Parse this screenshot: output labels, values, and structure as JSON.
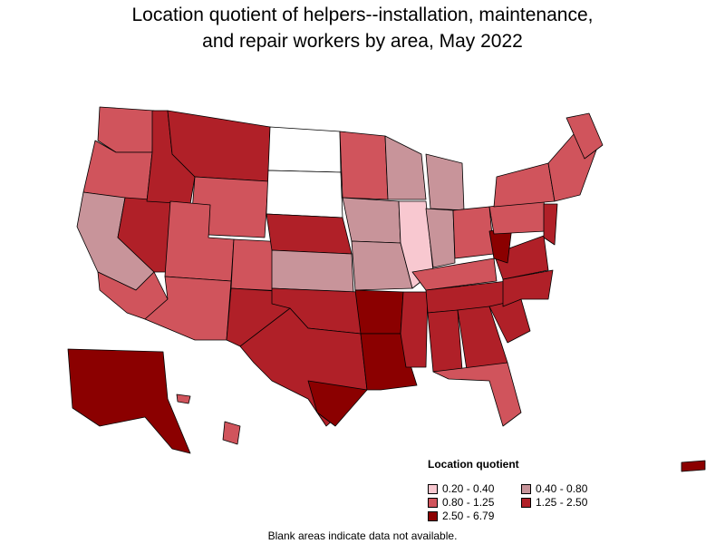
{
  "title_line1": "Location quotient of helpers--installation, maintenance,",
  "title_line2": "and repair workers by area, May 2022",
  "legend": {
    "title": "Location quotient",
    "items": [
      {
        "label": "0.20 - 0.40",
        "color": "#f8c8d0"
      },
      {
        "label": "0.40 - 0.80",
        "color": "#c8949a"
      },
      {
        "label": "0.80 - 1.25",
        "color": "#d0545c"
      },
      {
        "label": "1.25 - 2.50",
        "color": "#b02028"
      },
      {
        "label": "2.50 - 6.79",
        "color": "#8b0000"
      }
    ]
  },
  "footnote": "Blank areas indicate data not available.",
  "colors": {
    "none": "#ffffff",
    "low": "#f8c8d0",
    "lowmid": "#c8949a",
    "mid": "#d0545c",
    "high": "#b02028",
    "veryhigh": "#8b0000",
    "border": "#000000"
  }
}
